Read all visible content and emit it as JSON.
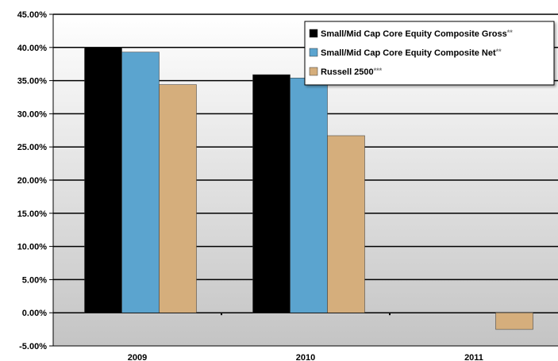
{
  "chart_data": {
    "type": "bar",
    "categories": [
      "2009",
      "2010",
      "2011"
    ],
    "series": [
      {
        "name": "Small/Mid Cap Core Equity Composite Gross",
        "name_suffix": "**",
        "color": "#000000",
        "values": [
          40.0,
          35.9,
          null
        ]
      },
      {
        "name": "Small/Mid Cap Core Equity Composite Net",
        "name_suffix": "**",
        "color": "#5ba4cf",
        "values": [
          39.3,
          35.4,
          null
        ]
      },
      {
        "name": "Russell 2500",
        "name_suffix": "***",
        "color": "#d5ae7c",
        "values": [
          34.4,
          26.7,
          -2.5
        ]
      }
    ],
    "y_ticks": [
      -5,
      0,
      5,
      10,
      15,
      20,
      25,
      30,
      35,
      40,
      45
    ],
    "y_tick_format": "percent_2dp",
    "ylim": [
      -5,
      45
    ],
    "grid": "horizontal",
    "legend_position": "top-right",
    "title": "",
    "xlabel": "",
    "ylabel": ""
  },
  "colors": {
    "plot_top": "#ffffff",
    "plot_bottom": "#c4c4c4",
    "gridline": "#000000",
    "legend_bg": "#ffffff"
  }
}
